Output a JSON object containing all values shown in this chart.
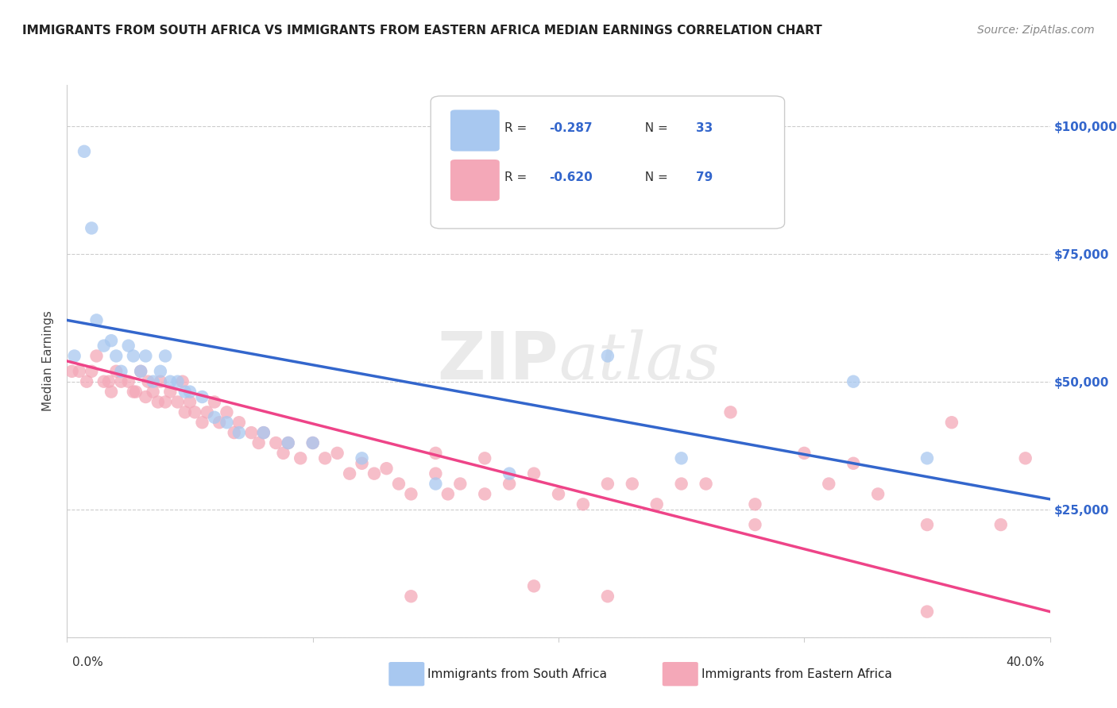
{
  "title": "IMMIGRANTS FROM SOUTH AFRICA VS IMMIGRANTS FROM EASTERN AFRICA MEDIAN EARNINGS CORRELATION CHART",
  "source": "Source: ZipAtlas.com",
  "ylabel": "Median Earnings",
  "watermark": "ZIPatlas",
  "legend_r_label": "R = ",
  "legend_blue_r_val": "-0.287",
  "legend_blue_n": "N = 33",
  "legend_pink_r_val": "-0.620",
  "legend_pink_n": "N = 79",
  "blue_color": "#A8C8F0",
  "pink_color": "#F4A8B8",
  "blue_line_color": "#3366CC",
  "pink_line_color": "#EE4488",
  "legend_text_color": "#3366CC",
  "grid_color": "#CCCCCC",
  "background_color": "#FFFFFF",
  "blue_scatter_x": [
    0.003,
    0.007,
    0.01,
    0.012,
    0.015,
    0.018,
    0.02,
    0.022,
    0.025,
    0.027,
    0.03,
    0.032,
    0.035,
    0.038,
    0.04,
    0.042,
    0.045,
    0.048,
    0.05,
    0.055,
    0.06,
    0.065,
    0.07,
    0.08,
    0.09,
    0.1,
    0.12,
    0.15,
    0.18,
    0.22,
    0.25,
    0.32,
    0.35
  ],
  "blue_scatter_y": [
    55000,
    95000,
    80000,
    62000,
    57000,
    58000,
    55000,
    52000,
    57000,
    55000,
    52000,
    55000,
    50000,
    52000,
    55000,
    50000,
    50000,
    48000,
    48000,
    47000,
    43000,
    42000,
    40000,
    40000,
    38000,
    38000,
    35000,
    30000,
    32000,
    55000,
    35000,
    50000,
    35000
  ],
  "pink_scatter_x": [
    0.002,
    0.005,
    0.008,
    0.01,
    0.012,
    0.015,
    0.017,
    0.018,
    0.02,
    0.022,
    0.025,
    0.027,
    0.028,
    0.03,
    0.032,
    0.033,
    0.035,
    0.037,
    0.038,
    0.04,
    0.042,
    0.045,
    0.047,
    0.048,
    0.05,
    0.052,
    0.055,
    0.057,
    0.06,
    0.062,
    0.065,
    0.068,
    0.07,
    0.075,
    0.078,
    0.08,
    0.085,
    0.088,
    0.09,
    0.095,
    0.1,
    0.105,
    0.11,
    0.115,
    0.12,
    0.125,
    0.13,
    0.135,
    0.14,
    0.15,
    0.155,
    0.16,
    0.17,
    0.18,
    0.19,
    0.2,
    0.21,
    0.22,
    0.23,
    0.24,
    0.25,
    0.27,
    0.28,
    0.3,
    0.31,
    0.32,
    0.33,
    0.35,
    0.36,
    0.38,
    0.39,
    0.22,
    0.26,
    0.15,
    0.17,
    0.19,
    0.14,
    0.28,
    0.35
  ],
  "pink_scatter_y": [
    52000,
    52000,
    50000,
    52000,
    55000,
    50000,
    50000,
    48000,
    52000,
    50000,
    50000,
    48000,
    48000,
    52000,
    47000,
    50000,
    48000,
    46000,
    50000,
    46000,
    48000,
    46000,
    50000,
    44000,
    46000,
    44000,
    42000,
    44000,
    46000,
    42000,
    44000,
    40000,
    42000,
    40000,
    38000,
    40000,
    38000,
    36000,
    38000,
    35000,
    38000,
    35000,
    36000,
    32000,
    34000,
    32000,
    33000,
    30000,
    8000,
    32000,
    28000,
    30000,
    28000,
    30000,
    10000,
    28000,
    26000,
    8000,
    30000,
    26000,
    30000,
    44000,
    26000,
    36000,
    30000,
    34000,
    28000,
    22000,
    42000,
    22000,
    35000,
    30000,
    30000,
    36000,
    35000,
    32000,
    28000,
    22000,
    5000
  ],
  "blue_trendline_x": [
    0.0,
    0.4
  ],
  "blue_trendline_y": [
    62000,
    27000
  ],
  "pink_trendline_x": [
    0.0,
    0.4
  ],
  "pink_trendline_y": [
    54000,
    5000
  ],
  "xlim": [
    0.0,
    0.4
  ],
  "ylim": [
    0,
    108000
  ],
  "yticks": [
    0,
    25000,
    50000,
    75000,
    100000
  ],
  "yticklabels_right": [
    "",
    "$25,000",
    "$50,000",
    "$75,000",
    "$100,000"
  ]
}
